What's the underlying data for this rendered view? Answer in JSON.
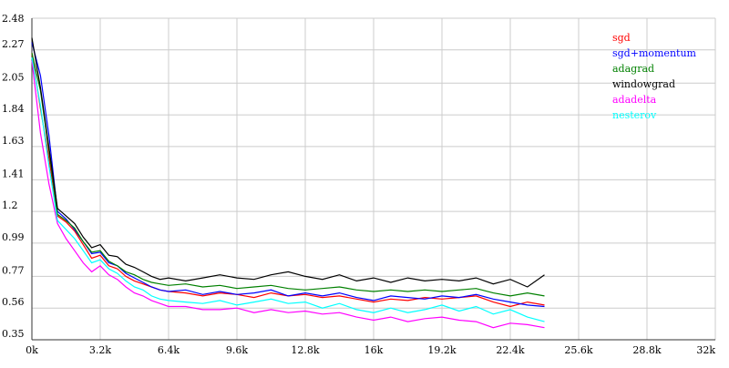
{
  "chart_data": {
    "type": "line",
    "title": "",
    "xlabel": "",
    "ylabel": "",
    "xlim": [
      0,
      32000
    ],
    "ylim": [
      0.35,
      2.48
    ],
    "grid": true,
    "legend_position": "top-right",
    "x_ticks": [
      0,
      3200,
      6400,
      9600,
      12800,
      16000,
      19200,
      22400,
      25600,
      28800,
      32000
    ],
    "x_tick_labels": [
      "0k",
      "3.2k",
      "6.4k",
      "9.6k",
      "12.8k",
      "16k",
      "19.2k",
      "22.4k",
      "25.6k",
      "28.8k",
      "32k"
    ],
    "y_ticks": [
      0.35,
      0.56,
      0.77,
      0.99,
      1.2,
      1.41,
      1.63,
      1.84,
      2.05,
      2.27,
      2.48
    ],
    "y_tick_labels": [
      "0.35",
      "0.56",
      "0.77",
      "0.99",
      "1.2",
      "1.41",
      "1.63",
      "1.84",
      "2.05",
      "2.27",
      "2.48"
    ],
    "x": [
      0,
      400,
      800,
      1200,
      1600,
      2000,
      2400,
      2800,
      3200,
      3600,
      4000,
      4400,
      4800,
      5200,
      5600,
      6000,
      6400,
      7200,
      8000,
      8800,
      9600,
      10400,
      11200,
      12000,
      12800,
      13600,
      14400,
      15200,
      16000,
      16800,
      17600,
      18400,
      19200,
      20000,
      20800,
      21600,
      22400,
      23200,
      24000
    ],
    "series": [
      {
        "name": "sgd",
        "color": "#ff0000",
        "values": [
          2.25,
          1.88,
          1.55,
          1.17,
          1.13,
          1.07,
          0.98,
          0.89,
          0.91,
          0.84,
          0.82,
          0.77,
          0.74,
          0.72,
          0.7,
          0.68,
          0.67,
          0.66,
          0.64,
          0.66,
          0.65,
          0.63,
          0.66,
          0.64,
          0.65,
          0.63,
          0.64,
          0.62,
          0.6,
          0.62,
          0.61,
          0.63,
          0.62,
          0.63,
          0.64,
          0.6,
          0.57,
          0.6,
          0.58
        ]
      },
      {
        "name": "sgd+momentum",
        "color": "#0000ff",
        "values": [
          2.32,
          2.1,
          1.7,
          1.2,
          1.15,
          1.08,
          1.0,
          0.92,
          0.93,
          0.86,
          0.84,
          0.79,
          0.76,
          0.73,
          0.7,
          0.68,
          0.67,
          0.68,
          0.65,
          0.67,
          0.65,
          0.66,
          0.68,
          0.64,
          0.66,
          0.64,
          0.66,
          0.63,
          0.61,
          0.64,
          0.63,
          0.62,
          0.64,
          0.63,
          0.65,
          0.62,
          0.6,
          0.58,
          0.57
        ]
      },
      {
        "name": "adagrad",
        "color": "#008000",
        "values": [
          2.25,
          2.0,
          1.6,
          1.18,
          1.14,
          1.09,
          1.0,
          0.93,
          0.94,
          0.87,
          0.84,
          0.8,
          0.78,
          0.75,
          0.73,
          0.72,
          0.71,
          0.72,
          0.7,
          0.71,
          0.69,
          0.7,
          0.71,
          0.69,
          0.68,
          0.69,
          0.7,
          0.68,
          0.67,
          0.68,
          0.67,
          0.68,
          0.67,
          0.68,
          0.69,
          0.66,
          0.64,
          0.66,
          0.64
        ]
      },
      {
        "name": "windowgrad",
        "color": "#000000",
        "values": [
          2.35,
          2.02,
          1.62,
          1.22,
          1.17,
          1.12,
          1.03,
          0.96,
          0.98,
          0.91,
          0.9,
          0.85,
          0.83,
          0.8,
          0.77,
          0.75,
          0.76,
          0.74,
          0.76,
          0.78,
          0.76,
          0.75,
          0.78,
          0.8,
          0.77,
          0.75,
          0.78,
          0.74,
          0.76,
          0.73,
          0.76,
          0.74,
          0.75,
          0.74,
          0.76,
          0.72,
          0.75,
          0.7,
          0.78
        ]
      },
      {
        "name": "adadelta",
        "color": "#ff00ff",
        "values": [
          2.2,
          1.72,
          1.38,
          1.12,
          1.02,
          0.94,
          0.86,
          0.8,
          0.84,
          0.78,
          0.75,
          0.7,
          0.66,
          0.64,
          0.61,
          0.59,
          0.57,
          0.57,
          0.55,
          0.55,
          0.56,
          0.53,
          0.55,
          0.53,
          0.54,
          0.52,
          0.53,
          0.5,
          0.48,
          0.5,
          0.47,
          0.49,
          0.5,
          0.48,
          0.47,
          0.43,
          0.46,
          0.45,
          0.43
        ]
      },
      {
        "name": "nesterov",
        "color": "#00ffff",
        "values": [
          2.22,
          1.9,
          1.5,
          1.14,
          1.08,
          1.02,
          0.94,
          0.86,
          0.88,
          0.82,
          0.79,
          0.74,
          0.7,
          0.68,
          0.64,
          0.62,
          0.61,
          0.6,
          0.59,
          0.61,
          0.58,
          0.6,
          0.62,
          0.59,
          0.6,
          0.56,
          0.59,
          0.55,
          0.53,
          0.56,
          0.53,
          0.55,
          0.58,
          0.54,
          0.57,
          0.52,
          0.55,
          0.5,
          0.47
        ]
      }
    ]
  }
}
